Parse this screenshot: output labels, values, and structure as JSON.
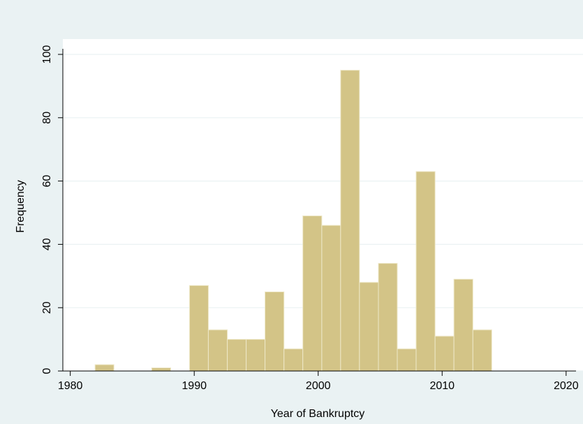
{
  "chart_data": {
    "type": "histogram",
    "xlabel": "Year of Bankruptcy",
    "ylabel": "Frequency",
    "bins": [
      1982,
      1983.52,
      1985.05,
      1986.57,
      1988.1,
      1989.62,
      1991.14,
      1992.67,
      1994.19,
      1995.71,
      1997.24,
      1998.76,
      2000.29,
      2001.81,
      2003.33,
      2004.86,
      2006.38,
      2007.9,
      2009.43,
      2010.95,
      2012.48,
      2014
    ],
    "values": [
      2,
      0,
      0,
      1,
      0,
      27,
      13,
      10,
      10,
      25,
      7,
      49,
      46,
      95,
      28,
      34,
      7,
      63,
      11,
      29,
      13
    ],
    "color": "#d3c487",
    "xlim": [
      1979.4,
      2020.8
    ],
    "xticks": [
      1980,
      1990,
      2000,
      2010,
      2020
    ],
    "ylim": [
      0,
      100
    ],
    "yticks": [
      0,
      20,
      40,
      60,
      80,
      100
    ],
    "grid": true
  }
}
